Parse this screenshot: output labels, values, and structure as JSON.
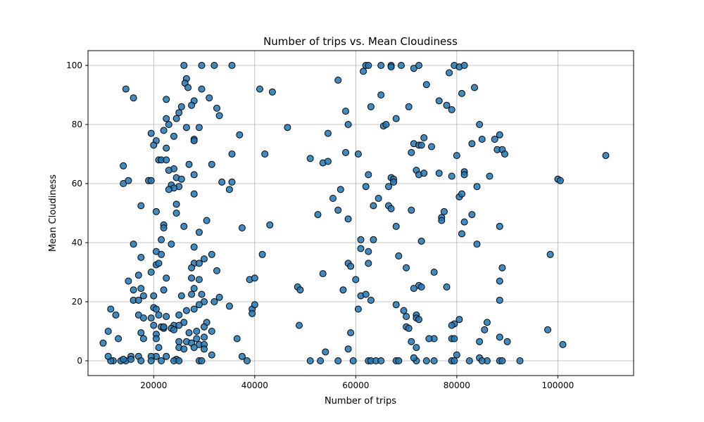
{
  "chart_data": {
    "type": "scatter",
    "title": "Number of trips vs. Mean Cloudiness",
    "xlabel": "Number of trips",
    "ylabel": "Mean Cloudiness",
    "xlim": [
      7000,
      115000
    ],
    "ylim": [
      -5,
      105
    ],
    "xticks": [
      20000,
      40000,
      60000,
      80000,
      100000
    ],
    "yticks": [
      0,
      20,
      40,
      60,
      80,
      100
    ],
    "grid": true,
    "point_color": "#1f77b4",
    "edge_color": "#000000",
    "points": [
      [
        26000,
        100
      ],
      [
        29500,
        100
      ],
      [
        32000,
        100
      ],
      [
        35500,
        100
      ],
      [
        26500,
        95.5
      ],
      [
        26200,
        94
      ],
      [
        26800,
        92.5
      ],
      [
        29500,
        92
      ],
      [
        31000,
        89
      ],
      [
        22500,
        88.5
      ],
      [
        28000,
        88
      ],
      [
        25500,
        86
      ],
      [
        27500,
        86.5
      ],
      [
        32500,
        85.5
      ],
      [
        25000,
        84
      ],
      [
        33000,
        83
      ],
      [
        24500,
        82
      ],
      [
        22500,
        82
      ],
      [
        23000,
        80
      ],
      [
        22000,
        78
      ],
      [
        26500,
        79
      ],
      [
        29000,
        79
      ],
      [
        19500,
        77
      ],
      [
        24000,
        76
      ],
      [
        28000,
        75
      ],
      [
        28000,
        74.5
      ],
      [
        20500,
        74.5
      ],
      [
        20000,
        73
      ],
      [
        22500,
        72
      ],
      [
        21000,
        68
      ],
      [
        21500,
        68
      ],
      [
        22500,
        68
      ],
      [
        27000,
        66.5
      ],
      [
        31500,
        66.5
      ],
      [
        24000,
        65
      ],
      [
        23000,
        64.5
      ],
      [
        28000,
        63
      ],
      [
        24500,
        62
      ],
      [
        25500,
        61.5
      ],
      [
        33500,
        60.5
      ],
      [
        35500,
        60.5
      ],
      [
        23500,
        59.5
      ],
      [
        25000,
        59
      ],
      [
        24000,
        58.5
      ],
      [
        23000,
        58
      ],
      [
        35000,
        58
      ],
      [
        28000,
        56.5
      ],
      [
        24500,
        53
      ],
      [
        17500,
        52.5
      ],
      [
        24500,
        50
      ],
      [
        20500,
        50.5
      ],
      [
        30500,
        47.5
      ],
      [
        22000,
        46
      ],
      [
        22000,
        45
      ],
      [
        26000,
        45.5
      ],
      [
        29000,
        43.5
      ],
      [
        21500,
        41
      ],
      [
        23500,
        39.5
      ],
      [
        16000,
        39.5
      ],
      [
        28000,
        38.5
      ],
      [
        20500,
        37
      ],
      [
        21500,
        36
      ],
      [
        31500,
        36
      ],
      [
        17500,
        35
      ],
      [
        30000,
        34.5
      ],
      [
        28000,
        33
      ],
      [
        20500,
        32.5
      ],
      [
        29000,
        33
      ],
      [
        21000,
        33
      ],
      [
        32500,
        30.5
      ],
      [
        27500,
        31.5
      ],
      [
        19500,
        30
      ],
      [
        17000,
        29
      ],
      [
        22500,
        28
      ],
      [
        27500,
        28
      ],
      [
        29000,
        27.5
      ],
      [
        15000,
        27
      ],
      [
        28000,
        24.5
      ],
      [
        17500,
        24.5
      ],
      [
        16000,
        24
      ],
      [
        22000,
        24
      ],
      [
        20000,
        22
      ],
      [
        18000,
        22
      ],
      [
        25500,
        22
      ],
      [
        27500,
        22.5
      ],
      [
        29500,
        22.5
      ],
      [
        30000,
        20
      ],
      [
        16000,
        20.5
      ],
      [
        17000,
        20.5
      ],
      [
        33000,
        21.5
      ],
      [
        32000,
        20
      ],
      [
        29000,
        19
      ],
      [
        35000,
        18.5
      ],
      [
        20000,
        18
      ],
      [
        20500,
        17.5
      ],
      [
        26500,
        17
      ],
      [
        28000,
        17.5
      ],
      [
        21000,
        15.5
      ],
      [
        25000,
        15.5
      ],
      [
        17000,
        15.5
      ],
      [
        19500,
        14.5
      ],
      [
        22500,
        15
      ],
      [
        26000,
        13
      ],
      [
        30500,
        13
      ],
      [
        18000,
        14.5
      ],
      [
        24000,
        12
      ],
      [
        20000,
        12
      ],
      [
        21500,
        11.5
      ],
      [
        22000,
        11
      ],
      [
        22000,
        11.5
      ],
      [
        25000,
        12
      ],
      [
        23500,
        11
      ],
      [
        30000,
        11.5
      ],
      [
        28500,
        10
      ],
      [
        31500,
        10
      ],
      [
        24000,
        10.5
      ],
      [
        17500,
        9.5
      ],
      [
        20500,
        9
      ],
      [
        27000,
        9.5
      ],
      [
        30000,
        8
      ],
      [
        28500,
        7.5
      ],
      [
        18000,
        7.5
      ],
      [
        20500,
        7.5
      ],
      [
        25000,
        6.5
      ],
      [
        26500,
        6.5
      ],
      [
        29000,
        5.5
      ],
      [
        30000,
        5.5
      ],
      [
        27500,
        6
      ],
      [
        25000,
        4.5
      ],
      [
        21000,
        4.5
      ],
      [
        26000,
        4
      ],
      [
        30000,
        4
      ],
      [
        28000,
        4.5
      ],
      [
        36500,
        7.5
      ],
      [
        37500,
        1.5
      ],
      [
        31500,
        2
      ],
      [
        20500,
        1.5
      ],
      [
        15500,
        1.5
      ],
      [
        17000,
        1.5
      ],
      [
        19500,
        1.5
      ],
      [
        22500,
        1.5
      ],
      [
        24500,
        0.5
      ],
      [
        24000,
        0
      ],
      [
        25000,
        0
      ],
      [
        29000,
        0
      ],
      [
        29500,
        0
      ],
      [
        38500,
        0
      ],
      [
        21500,
        0
      ],
      [
        19500,
        0
      ],
      [
        17500,
        0
      ],
      [
        13500,
        0
      ],
      [
        12000,
        0
      ],
      [
        14500,
        0
      ],
      [
        14000,
        0.5
      ],
      [
        15500,
        0.5
      ],
      [
        11500,
        0
      ],
      [
        11000,
        1.5
      ],
      [
        10000,
        6
      ],
      [
        11000,
        10
      ],
      [
        11500,
        17.5
      ],
      [
        12500,
        15.5
      ],
      [
        13000,
        7.5
      ],
      [
        14000,
        60
      ],
      [
        14000,
        66
      ],
      [
        15000,
        61
      ],
      [
        14500,
        92
      ],
      [
        16000,
        89
      ],
      [
        19000,
        61
      ],
      [
        19500,
        61
      ],
      [
        41000,
        92
      ],
      [
        43500,
        91
      ],
      [
        46500,
        79
      ],
      [
        42000,
        70
      ],
      [
        37000,
        76.5
      ],
      [
        35500,
        70
      ],
      [
        37500,
        45
      ],
      [
        43000,
        46
      ],
      [
        41500,
        36
      ],
      [
        39000,
        27.5
      ],
      [
        40000,
        28
      ],
      [
        39500,
        17.5
      ],
      [
        40000,
        19
      ],
      [
        39500,
        16
      ],
      [
        48500,
        25
      ],
      [
        49000,
        24
      ],
      [
        48800,
        12
      ],
      [
        51000,
        0
      ],
      [
        53000,
        0
      ],
      [
        56500,
        0
      ],
      [
        59500,
        0
      ],
      [
        62500,
        0
      ],
      [
        63000,
        0
      ],
      [
        64000,
        0
      ],
      [
        65000,
        0
      ],
      [
        68000,
        0
      ],
      [
        68500,
        0
      ],
      [
        72000,
        0
      ],
      [
        74000,
        0
      ],
      [
        75500,
        0
      ],
      [
        79000,
        0
      ],
      [
        79500,
        0
      ],
      [
        82500,
        0
      ],
      [
        86000,
        0
      ],
      [
        88500,
        0
      ],
      [
        89000,
        0
      ],
      [
        92500,
        0
      ],
      [
        51000,
        68.5
      ],
      [
        52500,
        49.5
      ],
      [
        53500,
        67
      ],
      [
        54500,
        67.5
      ],
      [
        53500,
        29.5
      ],
      [
        54000,
        3
      ],
      [
        55500,
        55
      ],
      [
        54500,
        77
      ],
      [
        56500,
        95
      ],
      [
        56500,
        51
      ],
      [
        57000,
        58
      ],
      [
        57500,
        24
      ],
      [
        58000,
        70.5
      ],
      [
        58000,
        84.5
      ],
      [
        58500,
        33
      ],
      [
        59000,
        32
      ],
      [
        58500,
        80
      ],
      [
        58500,
        48
      ],
      [
        59000,
        9.5
      ],
      [
        58500,
        4
      ],
      [
        60000,
        27.5
      ],
      [
        60500,
        17.5
      ],
      [
        60500,
        70
      ],
      [
        61000,
        38
      ],
      [
        61000,
        41
      ],
      [
        61000,
        22
      ],
      [
        62000,
        59
      ],
      [
        61500,
        98
      ],
      [
        62000,
        100
      ],
      [
        62500,
        100
      ],
      [
        62500,
        63
      ],
      [
        62000,
        22.5
      ],
      [
        62500,
        33
      ],
      [
        62500,
        37
      ],
      [
        63000,
        86
      ],
      [
        63500,
        52.5
      ],
      [
        63500,
        41
      ],
      [
        63000,
        20.5
      ],
      [
        64500,
        55
      ],
      [
        65000,
        90
      ],
      [
        65000,
        100
      ],
      [
        65500,
        79.5
      ],
      [
        66000,
        80
      ],
      [
        66500,
        52.5
      ],
      [
        66500,
        59
      ],
      [
        67000,
        100
      ],
      [
        67000,
        99.5
      ],
      [
        67000,
        62
      ],
      [
        67500,
        61.5
      ],
      [
        67000,
        51.5
      ],
      [
        67500,
        60.5
      ],
      [
        68000,
        45.5
      ],
      [
        68000,
        19
      ],
      [
        68000,
        82
      ],
      [
        68500,
        35.5
      ],
      [
        69000,
        100
      ],
      [
        69500,
        17
      ],
      [
        70000,
        31.5
      ],
      [
        70000,
        15
      ],
      [
        70500,
        86
      ],
      [
        71000,
        70.5
      ],
      [
        71500,
        73.5
      ],
      [
        71500,
        99
      ],
      [
        71000,
        51
      ],
      [
        72000,
        64.5
      ],
      [
        72500,
        63
      ],
      [
        72500,
        100
      ],
      [
        72500,
        73
      ],
      [
        73000,
        40.5
      ],
      [
        73000,
        73
      ],
      [
        73500,
        63.5
      ],
      [
        73500,
        75.5
      ],
      [
        72500,
        25.5
      ],
      [
        73000,
        25
      ],
      [
        71500,
        24.5
      ],
      [
        72000,
        15.5
      ],
      [
        72000,
        14.5
      ],
      [
        72500,
        14
      ],
      [
        70000,
        11.5
      ],
      [
        70500,
        11
      ],
      [
        71000,
        6.5
      ],
      [
        72000,
        4.5
      ],
      [
        71500,
        1
      ],
      [
        74000,
        93.5
      ],
      [
        75000,
        72.5
      ],
      [
        75500,
        30
      ],
      [
        75500,
        7.5
      ],
      [
        74500,
        7.5
      ],
      [
        76500,
        88
      ],
      [
        76500,
        63.5
      ],
      [
        77000,
        48.5
      ],
      [
        77000,
        47.5
      ],
      [
        77500,
        50.5
      ],
      [
        78000,
        86.5
      ],
      [
        78000,
        25
      ],
      [
        78500,
        97.5
      ],
      [
        79000,
        85
      ],
      [
        79500,
        100
      ],
      [
        79000,
        62.5
      ],
      [
        79500,
        12.5
      ],
      [
        79000,
        12
      ],
      [
        79000,
        7.5
      ],
      [
        79500,
        7.5
      ],
      [
        80000,
        69.5
      ],
      [
        80000,
        2
      ],
      [
        80500,
        99.5
      ],
      [
        80500,
        55.5
      ],
      [
        81000,
        90.5
      ],
      [
        81000,
        56.5
      ],
      [
        81000,
        43
      ],
      [
        81500,
        64
      ],
      [
        81500,
        63
      ],
      [
        81500,
        47
      ],
      [
        81500,
        100
      ],
      [
        80500,
        14
      ],
      [
        83000,
        73.5
      ],
      [
        83000,
        49.5
      ],
      [
        83500,
        92.5
      ],
      [
        84000,
        59
      ],
      [
        84000,
        39.5
      ],
      [
        84500,
        80
      ],
      [
        85000,
        75
      ],
      [
        85500,
        10.5
      ],
      [
        86000,
        13
      ],
      [
        84500,
        6.5
      ],
      [
        84500,
        1
      ],
      [
        85000,
        0
      ],
      [
        86500,
        62.5
      ],
      [
        87500,
        75
      ],
      [
        88000,
        71.5
      ],
      [
        88500,
        45.5
      ],
      [
        88500,
        20.5
      ],
      [
        88500,
        27
      ],
      [
        88500,
        8
      ],
      [
        88500,
        76.5
      ],
      [
        89000,
        71.5
      ],
      [
        89000,
        31.5
      ],
      [
        89500,
        70
      ],
      [
        90000,
        6.5
      ],
      [
        98000,
        10.5
      ],
      [
        98500,
        36
      ],
      [
        100000,
        61.5
      ],
      [
        100500,
        61
      ],
      [
        101000,
        5.5
      ],
      [
        109500,
        69.5
      ]
    ]
  }
}
